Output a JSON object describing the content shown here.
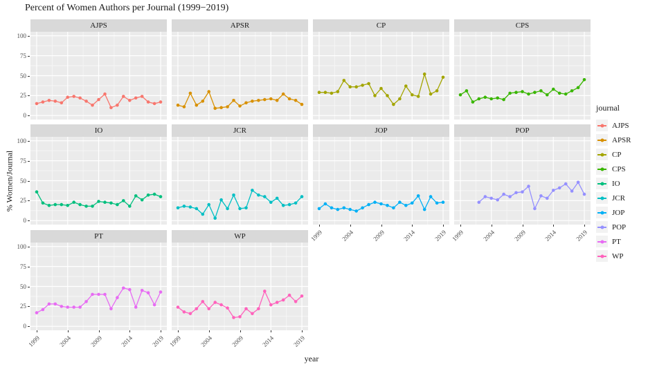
{
  "title": "Percent of Women Authors per Journal (1999−2019)",
  "axes": {
    "x_title": "year",
    "y_title": "% Women/Journal",
    "y_ticks": [
      "100",
      "75",
      "50",
      "25",
      "0"
    ],
    "y_tick_values": [
      100,
      75,
      50,
      25,
      0
    ],
    "x_ticks": [
      "1999",
      "2004",
      "2009",
      "2014",
      "2019"
    ],
    "x_tick_values": [
      1999,
      2004,
      2009,
      2014,
      2019
    ],
    "x_range": [
      1999,
      2019
    ],
    "y_range": [
      0,
      100
    ]
  },
  "theme": {
    "panel_bg": "#ebebeb",
    "strip_bg": "#d9d9d9",
    "grid_major": "#ffffff",
    "grid_minor": "#f7f7f7",
    "axis_text": "#4d4d4d",
    "tick_mark": "#333333",
    "legend_key_bg": "#f2f2f2"
  },
  "legend": {
    "title": "journal",
    "items": [
      {
        "label": "AJPS",
        "color": "#F8766D"
      },
      {
        "label": "APSR",
        "color": "#D89000"
      },
      {
        "label": "CP",
        "color": "#A3A500"
      },
      {
        "label": "CPS",
        "color": "#39B600"
      },
      {
        "label": "IO",
        "color": "#00BF7D"
      },
      {
        "label": "JCR",
        "color": "#00BFC4"
      },
      {
        "label": "JOP",
        "color": "#00B0F6"
      },
      {
        "label": "POP",
        "color": "#9590FF"
      },
      {
        "label": "PT",
        "color": "#E76BF3"
      },
      {
        "label": "WP",
        "color": "#FF62BC"
      }
    ]
  },
  "chart_data": {
    "type": "line",
    "title": "Percent of Women Authors per Journal (1999−2019)",
    "xlabel": "year",
    "ylabel": "% Women/Journal",
    "ylim": [
      0,
      100
    ],
    "xlim": [
      1999,
      2019
    ],
    "grid": true,
    "legend_position": "right",
    "facets": [
      {
        "journal": "AJPS",
        "start_year": 1999,
        "values": [
          15,
          17,
          19,
          18,
          16,
          23,
          24,
          22,
          18,
          13,
          20,
          27,
          10,
          13,
          24,
          19,
          22,
          24,
          17,
          15,
          17
        ]
      },
      {
        "journal": "APSR",
        "start_year": 1999,
        "values": [
          13,
          11,
          28,
          13,
          18,
          30,
          9,
          10,
          11,
          19,
          12,
          16,
          18,
          19,
          20,
          21,
          19,
          27,
          21,
          19,
          14
        ]
      },
      {
        "journal": "CP",
        "start_year": 1999,
        "values": [
          29,
          29,
          28,
          30,
          44,
          36,
          36,
          38,
          40,
          25,
          34,
          25,
          14,
          21,
          37,
          26,
          24,
          52,
          27,
          31,
          48
        ]
      },
      {
        "journal": "CPS",
        "start_year": 1999,
        "values": [
          26,
          31,
          17,
          21,
          23,
          21,
          22,
          20,
          28,
          29,
          30,
          27,
          29,
          31,
          26,
          33,
          28,
          27,
          31,
          35,
          45
        ]
      },
      {
        "journal": "IO",
        "start_year": 1999,
        "values": [
          36,
          22,
          19,
          20,
          20,
          19,
          23,
          20,
          18,
          18,
          24,
          23,
          22,
          20,
          25,
          18,
          31,
          26,
          32,
          33,
          30
        ]
      },
      {
        "journal": "JCR",
        "start_year": 1999,
        "values": [
          16,
          18,
          17,
          15,
          8,
          20,
          3,
          26,
          15,
          32,
          15,
          16,
          38,
          32,
          30,
          23,
          28,
          19,
          20,
          22,
          30
        ]
      },
      {
        "journal": "JOP",
        "start_year": 1999,
        "values": [
          15,
          21,
          16,
          14,
          16,
          14,
          12,
          16,
          20,
          23,
          21,
          19,
          16,
          23,
          19,
          22,
          31,
          14,
          30,
          22,
          23
        ]
      },
      {
        "journal": "POP",
        "start_year": 2002,
        "values": [
          23,
          30,
          28,
          26,
          33,
          30,
          35,
          36,
          43,
          15,
          31,
          28,
          38,
          41,
          46,
          37,
          48,
          33
        ]
      },
      {
        "journal": "PT",
        "start_year": 1999,
        "values": [
          17,
          21,
          28,
          28,
          25,
          24,
          24,
          24,
          31,
          40,
          40,
          40,
          22,
          36,
          48,
          46,
          24,
          45,
          42,
          27,
          43
        ]
      },
      {
        "journal": "WP",
        "start_year": 1999,
        "values": [
          24,
          18,
          16,
          22,
          31,
          22,
          30,
          27,
          23,
          11,
          12,
          22,
          16,
          22,
          44,
          27,
          30,
          33,
          39,
          31,
          38
        ]
      }
    ]
  }
}
